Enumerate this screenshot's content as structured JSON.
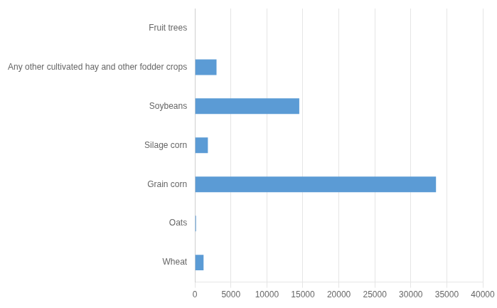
{
  "chart_data": {
    "type": "bar",
    "orientation": "horizontal",
    "categories": [
      "Wheat",
      "Oats",
      "Grain corn",
      "Silage corn",
      "Soybeans",
      "Any other cultivated hay and other fodder crops",
      "Fruit trees"
    ],
    "values": [
      1200,
      150,
      33500,
      1800,
      14500,
      3000,
      0
    ],
    "color": "#5b9bd5",
    "xlim": [
      0,
      40000
    ],
    "xticks": [
      0,
      5000,
      10000,
      15000,
      20000,
      25000,
      30000,
      35000,
      40000
    ],
    "grid": true
  }
}
